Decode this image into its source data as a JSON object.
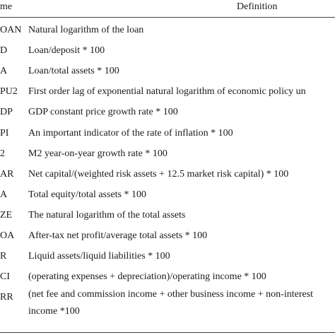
{
  "header": {
    "name": "me",
    "definition": "Definition"
  },
  "rows": [
    {
      "name": "OAN",
      "definition": [
        "Natural logarithm of the loan"
      ]
    },
    {
      "name": "D",
      "definition": [
        "Loan/deposit * 100"
      ]
    },
    {
      "name": "A",
      "definition": [
        "Loan/total assets * 100"
      ]
    },
    {
      "name": "PU2",
      "definition": [
        "First order lag of exponential natural logarithm of economic policy un"
      ]
    },
    {
      "name": "DP",
      "definition": [
        "GDP constant price growth rate * 100"
      ]
    },
    {
      "name": "PI",
      "definition": [
        "An important indicator of the rate of inflation * 100"
      ]
    },
    {
      "name": "2",
      "definition": [
        "M2 year-on-year growth rate * 100"
      ]
    },
    {
      "name": "AR",
      "definition": [
        "Net capital/(weighted risk assets + 12.5 market risk capital) * 100"
      ]
    },
    {
      "name": "A",
      "definition": [
        "Total equity/total assets * 100"
      ]
    },
    {
      "name": "ZE",
      "definition": [
        "The natural logarithm of the total assets"
      ]
    },
    {
      "name": "OA",
      "definition": [
        "After-tax net profit/average total assets * 100"
      ]
    },
    {
      "name": "R",
      "definition": [
        "Liquid assets/liquid liabilities * 100"
      ]
    },
    {
      "name": "CI",
      "definition": [
        "(operating expenses + depreciation)/operating income * 100"
      ]
    },
    {
      "name": "RR",
      "definition": [
        "(net fee and commission income + other business income + non-interest",
        "income *100"
      ]
    }
  ]
}
